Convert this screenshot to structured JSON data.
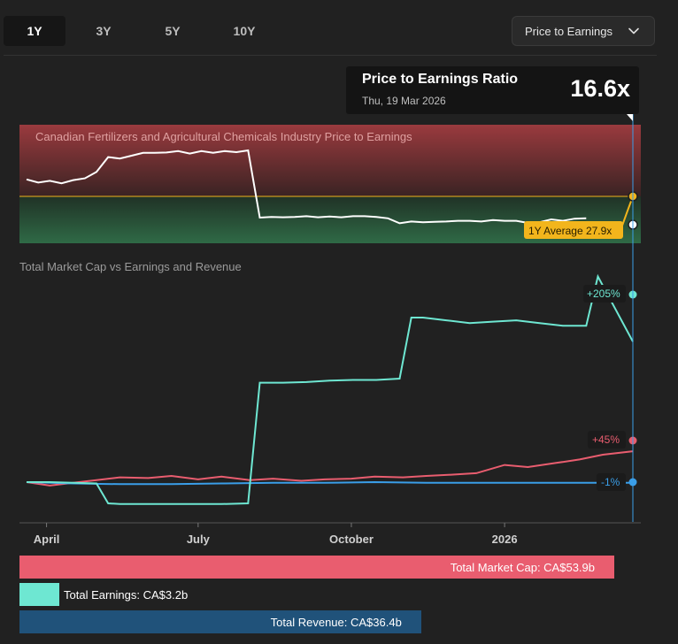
{
  "tabs": [
    {
      "label": "1Y",
      "active": true
    },
    {
      "label": "3Y",
      "active": false
    },
    {
      "label": "5Y",
      "active": false
    },
    {
      "label": "10Y",
      "active": false
    }
  ],
  "dropdown": {
    "selected": "Price to Earnings",
    "icon": "chevron-down-icon"
  },
  "tooltip": {
    "title": "Price to Earnings Ratio",
    "date": "Thu, 19 Mar 2026",
    "value": "16.6x"
  },
  "colors": {
    "earnings": "#6ee7d2",
    "market_cap": "#e95d6f",
    "revenue": "#3a9ee8",
    "average": "#f2b51c",
    "revenue_bar": "#20527a"
  },
  "chart_data": [
    {
      "type": "line",
      "title": "Canadian Fertilizers and Agricultural Chemicals Industry Price to Earnings",
      "x_ticks": [
        "April",
        "July",
        "October",
        "2026"
      ],
      "zones": [
        "above average",
        "below average"
      ],
      "series": [
        {
          "name": "",
          "x": [
            "2025-03-20",
            "2025-03-27",
            "2025-04-03",
            "2025-04-10",
            "2025-04-17",
            "2025-04-24",
            "2025-05-01",
            "2025-05-08",
            "2025-05-15",
            "2025-05-22",
            "2025-05-29",
            "2025-06-05",
            "2025-06-12",
            "2025-06-19",
            "2025-06-26",
            "2025-07-03",
            "2025-07-10",
            "2025-07-17",
            "2025-07-24",
            "2025-07-31",
            "2025-08-07",
            "2025-08-14",
            "2025-08-21",
            "2025-08-28",
            "2025-09-04",
            "2025-09-11",
            "2025-09-18",
            "2025-09-25",
            "2025-10-02",
            "2025-10-09",
            "2025-10-16",
            "2025-10-23",
            "2025-10-30",
            "2025-11-06",
            "2025-11-13",
            "2025-11-20",
            "2025-11-27",
            "2025-12-04",
            "2025-12-11",
            "2025-12-18",
            "2025-12-25",
            "2026-01-01",
            "2026-01-08",
            "2026-01-15",
            "2026-01-22",
            "2026-01-29",
            "2026-02-05",
            "2026-02-12",
            "2026-02-19"
          ],
          "values": [
            32.7,
            31.8,
            32.3,
            31.6,
            32.5,
            33.0,
            34.8,
            39.0,
            38.6,
            39.4,
            40.2,
            40.2,
            40.3,
            40.7,
            40.0,
            40.7,
            40.2,
            40.7,
            40.4,
            40.9,
            21.9,
            22.1,
            22.0,
            22.1,
            22.3,
            22.0,
            22.2,
            22.0,
            22.3,
            22.3,
            22.1,
            21.7,
            20.3,
            20.8,
            20.6,
            20.7,
            20.8,
            21.0,
            21.0,
            20.8,
            21.2,
            21.0,
            21.0,
            20.4,
            20.6,
            21.4,
            21.0,
            21.6,
            21.7
          ]
        }
      ],
      "average": {
        "label": "1Y Average 27.9x",
        "value": 27.9
      },
      "current": {
        "value": 16.6
      }
    },
    {
      "type": "line",
      "title": "Total Market Cap vs Earnings and Revenue",
      "x_ticks": [
        "April",
        "July",
        "October",
        "2026"
      ],
      "series": [
        {
          "name": "Total Earnings",
          "x": [
            "2025-03-20",
            "2025-04-03",
            "2025-04-17",
            "2025-05-01",
            "2025-05-08",
            "2025-05-15",
            "2025-06-01",
            "2025-06-15",
            "2025-07-01",
            "2025-07-15",
            "2025-07-31",
            "2025-08-07",
            "2025-08-21",
            "2025-09-04",
            "2025-09-18",
            "2025-10-02",
            "2025-10-16",
            "2025-10-30",
            "2025-11-06",
            "2025-11-13",
            "2025-11-27",
            "2025-12-11",
            "2025-12-25",
            "2026-01-08",
            "2026-01-22",
            "2026-02-05",
            "2026-02-19",
            "2026-02-26",
            "2026-03-19"
          ],
          "values": [
            0,
            0,
            -1,
            -2,
            -31,
            -32,
            -32,
            -32,
            -32,
            -32,
            -31,
            145,
            145,
            146,
            148,
            149,
            149,
            151,
            240,
            240,
            236,
            232,
            234,
            236,
            232,
            228,
            228,
            300,
            205
          ]
        },
        {
          "name": "Total Market Cap",
          "x": [
            "2025-03-20",
            "2025-04-03",
            "2025-04-17",
            "2025-05-01",
            "2025-05-15",
            "2025-06-01",
            "2025-06-15",
            "2025-07-01",
            "2025-07-15",
            "2025-08-01",
            "2025-08-15",
            "2025-09-01",
            "2025-09-15",
            "2025-10-01",
            "2025-10-15",
            "2025-11-01",
            "2025-11-15",
            "2025-12-01",
            "2025-12-15",
            "2026-01-01",
            "2026-01-15",
            "2026-02-01",
            "2026-02-15",
            "2026-03-01",
            "2026-03-19"
          ],
          "values": [
            0,
            -5,
            -1,
            3,
            7,
            6,
            9,
            4,
            8,
            3,
            5,
            2,
            4,
            5,
            8,
            7,
            9,
            11,
            13,
            25,
            22,
            28,
            33,
            40,
            45
          ]
        },
        {
          "name": "Total Revenue",
          "x": [
            "2025-03-20",
            "2025-04-17",
            "2025-05-15",
            "2025-06-15",
            "2025-07-15",
            "2025-08-15",
            "2025-09-15",
            "2025-10-15",
            "2025-11-15",
            "2025-12-15",
            "2026-01-15",
            "2026-02-15",
            "2026-03-19"
          ],
          "values": [
            0,
            -2,
            -3,
            -3,
            -2,
            -1,
            -1,
            0,
            -1,
            -1,
            -1,
            -1,
            -1
          ]
        }
      ],
      "end_labels": [
        "+205%",
        "+45%",
        "-1%"
      ],
      "unit": "%"
    }
  ],
  "legend_bars": [
    {
      "label": "Total Market Cap: CA$53.9b",
      "value_b": 53.9
    },
    {
      "label": "Total Earnings: CA$3.2b",
      "value_b": 3.2
    },
    {
      "label": "Total Revenue: CA$36.4b",
      "value_b": 36.4
    }
  ]
}
